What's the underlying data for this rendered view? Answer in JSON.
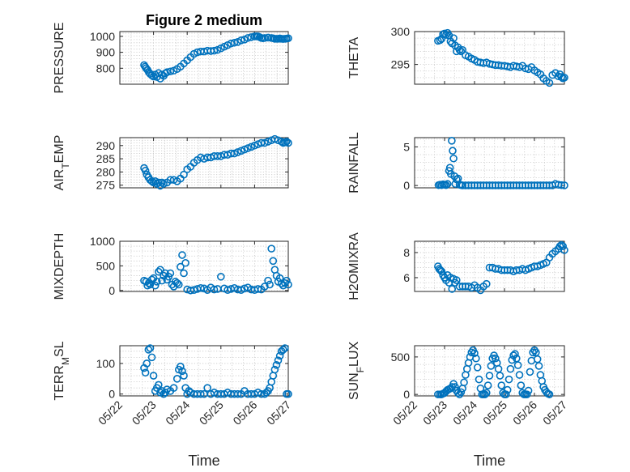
{
  "figure": {
    "title": "Figure 2 medium",
    "xlabel": "Time"
  },
  "colors": {
    "series": "#0072bd",
    "axis": "#262626",
    "grid": "#c8c8c8"
  },
  "chart_data": [
    {
      "id": "pressure",
      "type": "scatter",
      "title": "Figure 2 medium",
      "ylabel_parts": [
        "PRESSURE"
      ],
      "xlabel": "",
      "xlim": [
        0,
        5
      ],
      "ylim": [
        700,
        1030
      ],
      "yticks": [
        800,
        900,
        1000
      ],
      "yticklabels": [
        "800",
        "900",
        "1000"
      ],
      "grid": true,
      "x": [
        0.72,
        0.75,
        0.78,
        0.82,
        0.86,
        0.9,
        0.95,
        1.0,
        1.05,
        1.1,
        1.15,
        1.2,
        1.25,
        1.3,
        1.35,
        1.4,
        1.5,
        1.6,
        1.7,
        1.8,
        1.9,
        2.0,
        2.1,
        2.2,
        2.3,
        2.4,
        2.5,
        2.6,
        2.7,
        2.8,
        2.9,
        3.0,
        3.1,
        3.2,
        3.3,
        3.4,
        3.5,
        3.6,
        3.7,
        3.8,
        3.9,
        4.0,
        4.05,
        4.1,
        4.15,
        4.2,
        4.25,
        4.3,
        4.4,
        4.5,
        4.55,
        4.6,
        4.65,
        4.7,
        4.75,
        4.8,
        4.85,
        4.9,
        4.95,
        5.0
      ],
      "y": [
        820,
        810,
        800,
        790,
        775,
        765,
        755,
        748,
        760,
        745,
        770,
        735,
        760,
        752,
        768,
        775,
        780,
        785,
        795,
        810,
        830,
        850,
        870,
        890,
        900,
        905,
        905,
        910,
        908,
        910,
        915,
        925,
        935,
        945,
        955,
        960,
        965,
        975,
        980,
        990,
        995,
        1000,
        1000,
        1000,
        995,
        990,
        988,
        990,
        992,
        990,
        988,
        985,
        985,
        985,
        987,
        985,
        984,
        985,
        986,
        988
      ]
    },
    {
      "id": "theta",
      "type": "scatter",
      "ylabel_parts": [
        "THETA"
      ],
      "xlabel": "",
      "xlim": [
        0,
        5
      ],
      "ylim": [
        292,
        300
      ],
      "yticks": [
        295,
        300
      ],
      "yticklabels": [
        "295",
        "300"
      ],
      "grid": true,
      "x": [
        0.78,
        0.85,
        0.9,
        0.95,
        1.0,
        1.05,
        1.1,
        1.15,
        1.2,
        1.25,
        1.3,
        1.35,
        1.4,
        1.45,
        1.5,
        1.55,
        1.6,
        1.7,
        1.8,
        1.9,
        2.0,
        2.1,
        2.2,
        2.3,
        2.4,
        2.5,
        2.6,
        2.7,
        2.8,
        2.9,
        3.0,
        3.1,
        3.2,
        3.3,
        3.4,
        3.5,
        3.6,
        3.7,
        3.8,
        3.9,
        4.0,
        4.1,
        4.2,
        4.3,
        4.4,
        4.5,
        4.6,
        4.7,
        4.8,
        4.85,
        4.9,
        4.95,
        5.0
      ],
      "y": [
        298.6,
        298.7,
        298.9,
        299.6,
        299.7,
        299.5,
        299.8,
        299.4,
        298.5,
        298.2,
        299.0,
        297.9,
        297.0,
        297.6,
        297.2,
        297.0,
        297.2,
        296.4,
        296.2,
        295.9,
        295.7,
        295.4,
        295.3,
        295.2,
        295.3,
        295.1,
        295.0,
        294.9,
        294.9,
        294.8,
        294.8,
        294.7,
        294.6,
        294.8,
        294.7,
        294.6,
        294.8,
        294.4,
        294.3,
        294.6,
        294.1,
        293.8,
        293.5,
        292.9,
        292.5,
        292.2,
        293.4,
        293.7,
        293.2,
        293.5,
        293.1,
        292.9,
        293.0
      ]
    },
    {
      "id": "air-temp",
      "type": "scatter",
      "ylabel_parts": [
        "AIR",
        "T",
        "EMP"
      ],
      "xlabel": "",
      "xlim": [
        0,
        5
      ],
      "ylim": [
        274,
        293
      ],
      "yticks": [
        275,
        280,
        285,
        290
      ],
      "yticklabels": [
        "275",
        "280",
        "285",
        "290"
      ],
      "grid": true,
      "x": [
        0.72,
        0.76,
        0.8,
        0.85,
        0.9,
        0.95,
        1.0,
        1.05,
        1.1,
        1.15,
        1.2,
        1.25,
        1.3,
        1.4,
        1.5,
        1.6,
        1.7,
        1.8,
        1.9,
        2.0,
        2.1,
        2.2,
        2.3,
        2.4,
        2.5,
        2.6,
        2.7,
        2.8,
        2.9,
        3.0,
        3.1,
        3.2,
        3.3,
        3.4,
        3.5,
        3.6,
        3.7,
        3.8,
        3.9,
        4.0,
        4.1,
        4.2,
        4.3,
        4.4,
        4.5,
        4.6,
        4.7,
        4.8,
        4.85,
        4.9,
        4.95,
        5.0
      ],
      "y": [
        281.5,
        280.5,
        279,
        278,
        277,
        276.5,
        276,
        276.5,
        275.5,
        276,
        274.8,
        276,
        275.5,
        276,
        277,
        277,
        276.5,
        277.5,
        279,
        281,
        282,
        283.5,
        284.5,
        285.5,
        285,
        285.5,
        285.5,
        286,
        286,
        286,
        286.5,
        286.5,
        287,
        287,
        287.5,
        288,
        288.5,
        289,
        289.5,
        290,
        290.5,
        291,
        291,
        291.5,
        292,
        292.5,
        292,
        291.5,
        291,
        291.2,
        291.5,
        291
      ]
    },
    {
      "id": "rainfall",
      "type": "scatter",
      "ylabel_parts": [
        "RAINFALL"
      ],
      "xlabel": "",
      "xlim": [
        0,
        5
      ],
      "ylim": [
        -0.3,
        6.2
      ],
      "yticks": [
        0,
        5
      ],
      "yticklabels": [
        "0",
        "5"
      ],
      "grid": true,
      "x": [
        0.8,
        0.85,
        0.9,
        0.95,
        1.0,
        1.05,
        1.1,
        1.15,
        1.18,
        1.21,
        1.24,
        1.27,
        1.3,
        1.33,
        1.36,
        1.4,
        1.45,
        1.5,
        1.55,
        1.6,
        1.7,
        1.8,
        1.9,
        2.0,
        2.1,
        2.2,
        2.3,
        2.4,
        2.5,
        2.6,
        2.7,
        2.8,
        2.9,
        3.0,
        3.1,
        3.2,
        3.3,
        3.4,
        3.5,
        3.6,
        3.7,
        3.8,
        3.9,
        4.0,
        4.1,
        4.2,
        4.3,
        4.4,
        4.5,
        4.6,
        4.7,
        4.8,
        4.9,
        5.0
      ],
      "y": [
        0.05,
        0.1,
        0.05,
        0.15,
        0.1,
        0.05,
        0.2,
        1.9,
        2.3,
        1.5,
        5.8,
        4.5,
        3.5,
        1.2,
        0.2,
        0.8,
        0.9,
        0.1,
        0.05,
        0.02,
        0.02,
        0.02,
        0.02,
        0.02,
        0.02,
        0.02,
        0.02,
        0.02,
        0.02,
        0.02,
        0.02,
        0.02,
        0.02,
        0.02,
        0.02,
        0.02,
        0.02,
        0.02,
        0.02,
        0.02,
        0.02,
        0.02,
        0.02,
        0.02,
        0.02,
        0.02,
        0.02,
        0.02,
        0.02,
        0.02,
        0.2,
        0.1,
        0.05,
        0.02
      ]
    },
    {
      "id": "mixdepth",
      "type": "scatter",
      "ylabel_parts": [
        "MIXDEPTH"
      ],
      "xlabel": "",
      "xlim": [
        0,
        5
      ],
      "ylim": [
        -20,
        1000
      ],
      "yticks": [
        0,
        500,
        1000
      ],
      "yticklabels": [
        "0",
        "500",
        "1000"
      ],
      "grid": true,
      "x": [
        0.72,
        0.78,
        0.82,
        0.86,
        0.9,
        0.95,
        1.0,
        1.05,
        1.1,
        1.15,
        1.2,
        1.25,
        1.3,
        1.35,
        1.4,
        1.45,
        1.5,
        1.55,
        1.6,
        1.65,
        1.7,
        1.75,
        1.8,
        1.85,
        1.9,
        1.95,
        2.0,
        2.1,
        2.2,
        2.3,
        2.4,
        2.5,
        2.6,
        2.7,
        2.8,
        2.9,
        3.0,
        3.1,
        3.2,
        3.3,
        3.4,
        3.5,
        3.6,
        3.7,
        3.8,
        3.9,
        4.0,
        4.1,
        4.2,
        4.3,
        4.4,
        4.45,
        4.5,
        4.55,
        4.6,
        4.65,
        4.7,
        4.75,
        4.8,
        4.85,
        4.9,
        4.95,
        5.0
      ],
      "y": [
        200,
        180,
        100,
        150,
        120,
        220,
        250,
        100,
        180,
        380,
        420,
        200,
        300,
        350,
        220,
        280,
        350,
        120,
        80,
        180,
        150,
        120,
        480,
        720,
        350,
        560,
        20,
        0,
        10,
        30,
        50,
        40,
        10,
        60,
        20,
        30,
        280,
        40,
        10,
        30,
        50,
        20,
        10,
        40,
        60,
        20,
        10,
        30,
        20,
        80,
        200,
        120,
        850,
        600,
        420,
        300,
        180,
        250,
        140,
        100,
        150,
        200,
        120
      ]
    },
    {
      "id": "h2omixra",
      "type": "scatter",
      "ylabel_parts": [
        "H2OMIXRA"
      ],
      "xlabel": "",
      "xlim": [
        0,
        5
      ],
      "ylim": [
        4.9,
        8.9
      ],
      "yticks": [
        6,
        8
      ],
      "yticklabels": [
        "6",
        "8"
      ],
      "grid": true,
      "x": [
        0.78,
        0.82,
        0.86,
        0.9,
        0.95,
        1.0,
        1.05,
        1.1,
        1.15,
        1.2,
        1.25,
        1.3,
        1.35,
        1.4,
        1.5,
        1.6,
        1.7,
        1.8,
        1.9,
        2.0,
        2.1,
        2.2,
        2.3,
        2.4,
        2.5,
        2.6,
        2.7,
        2.8,
        2.9,
        3.0,
        3.1,
        3.2,
        3.3,
        3.4,
        3.5,
        3.6,
        3.7,
        3.8,
        3.9,
        4.0,
        4.1,
        4.2,
        4.3,
        4.4,
        4.5,
        4.6,
        4.7,
        4.8,
        4.85,
        4.9,
        4.95,
        5.0
      ],
      "y": [
        6.9,
        6.7,
        6.6,
        6.5,
        6.2,
        6.0,
        5.8,
        6.2,
        5.6,
        6.0,
        5.1,
        5.9,
        5.6,
        5.8,
        5.3,
        5.3,
        5.3,
        5.3,
        5.2,
        5.4,
        5.2,
        5.0,
        5.3,
        5.5,
        6.8,
        6.8,
        6.7,
        6.7,
        6.6,
        6.6,
        6.6,
        6.6,
        6.5,
        6.6,
        6.6,
        6.7,
        6.6,
        6.7,
        6.8,
        6.9,
        6.9,
        7.0,
        7.1,
        7.2,
        7.6,
        7.9,
        8.1,
        8.3,
        8.5,
        8.6,
        8.5,
        8.2
      ]
    },
    {
      "id": "terr-msl",
      "type": "scatter",
      "ylabel_parts": [
        "TERR",
        "M",
        "SL"
      ],
      "xlabel": "Time",
      "xlim": [
        0,
        5
      ],
      "ylim": [
        -6,
        158
      ],
      "yticks": [
        0,
        100
      ],
      "yticklabels": [
        "0",
        "100"
      ],
      "grid": true,
      "xticks": [
        0,
        1,
        2,
        3,
        4,
        5
      ],
      "xticklabels": [
        "05/22",
        "05/23",
        "05/24",
        "05/25",
        "05/26",
        "05/27"
      ],
      "x": [
        0.72,
        0.76,
        0.8,
        0.85,
        0.9,
        0.95,
        1.0,
        1.05,
        1.1,
        1.15,
        1.2,
        1.25,
        1.3,
        1.35,
        1.4,
        1.5,
        1.6,
        1.7,
        1.75,
        1.8,
        1.85,
        1.9,
        1.95,
        2.0,
        2.05,
        2.1,
        2.2,
        2.3,
        2.4,
        2.5,
        2.6,
        2.7,
        2.8,
        2.9,
        3.0,
        3.1,
        3.2,
        3.3,
        3.4,
        3.5,
        3.6,
        3.7,
        3.8,
        3.9,
        4.0,
        4.1,
        4.2,
        4.3,
        4.35,
        4.4,
        4.45,
        4.5,
        4.55,
        4.6,
        4.65,
        4.7,
        4.75,
        4.8,
        4.85,
        4.9,
        4.95,
        5.0
      ],
      "y": [
        85,
        70,
        100,
        145,
        150,
        120,
        60,
        10,
        20,
        30,
        5,
        10,
        0,
        5,
        15,
        10,
        20,
        50,
        80,
        90,
        75,
        60,
        20,
        0,
        10,
        5,
        0,
        0,
        0,
        0,
        20,
        0,
        5,
        0,
        0,
        0,
        5,
        0,
        0,
        0,
        0,
        10,
        0,
        0,
        0,
        5,
        0,
        0,
        5,
        10,
        20,
        40,
        60,
        80,
        95,
        110,
        125,
        140,
        145,
        150,
        0,
        0
      ]
    },
    {
      "id": "sun-flux",
      "type": "scatter",
      "ylabel_parts": [
        "SUN",
        "F",
        "LUX"
      ],
      "xlabel": "Time",
      "xlim": [
        0,
        5
      ],
      "ylim": [
        -20,
        650
      ],
      "yticks": [
        0,
        500
      ],
      "yticklabels": [
        "0",
        "500"
      ],
      "grid": true,
      "xticks": [
        0,
        1,
        2,
        3,
        4,
        5
      ],
      "xticklabels": [
        "05/22",
        "05/23",
        "05/24",
        "05/25",
        "05/26",
        "05/27"
      ],
      "x": [
        0.78,
        0.85,
        0.9,
        0.95,
        1.0,
        1.05,
        1.1,
        1.15,
        1.2,
        1.25,
        1.3,
        1.35,
        1.4,
        1.45,
        1.5,
        1.55,
        1.6,
        1.65,
        1.7,
        1.75,
        1.8,
        1.85,
        1.9,
        1.95,
        2.0,
        2.05,
        2.1,
        2.15,
        2.2,
        2.25,
        2.3,
        2.35,
        2.4,
        2.45,
        2.5,
        2.55,
        2.6,
        2.65,
        2.7,
        2.75,
        2.8,
        2.85,
        2.9,
        2.95,
        3.0,
        3.05,
        3.1,
        3.15,
        3.2,
        3.25,
        3.3,
        3.35,
        3.4,
        3.45,
        3.5,
        3.55,
        3.6,
        3.65,
        3.7,
        3.75,
        3.8,
        3.85,
        3.9,
        3.95,
        4.0,
        4.05,
        4.1,
        4.15,
        4.2,
        4.25,
        4.3,
        4.35,
        4.4,
        4.45,
        4.5
      ],
      "y": [
        0,
        0,
        0,
        10,
        20,
        40,
        60,
        70,
        80,
        100,
        140,
        100,
        50,
        20,
        0,
        30,
        80,
        160,
        260,
        340,
        420,
        500,
        560,
        590,
        550,
        480,
        360,
        200,
        80,
        0,
        0,
        0,
        20,
        120,
        250,
        380,
        480,
        520,
        480,
        420,
        340,
        250,
        120,
        20,
        0,
        0,
        60,
        200,
        340,
        460,
        520,
        540,
        480,
        390,
        260,
        120,
        20,
        0,
        0,
        0,
        50,
        300,
        450,
        560,
        590,
        560,
        470,
        380,
        260,
        180,
        100,
        60,
        30,
        10,
        0
      ]
    }
  ]
}
